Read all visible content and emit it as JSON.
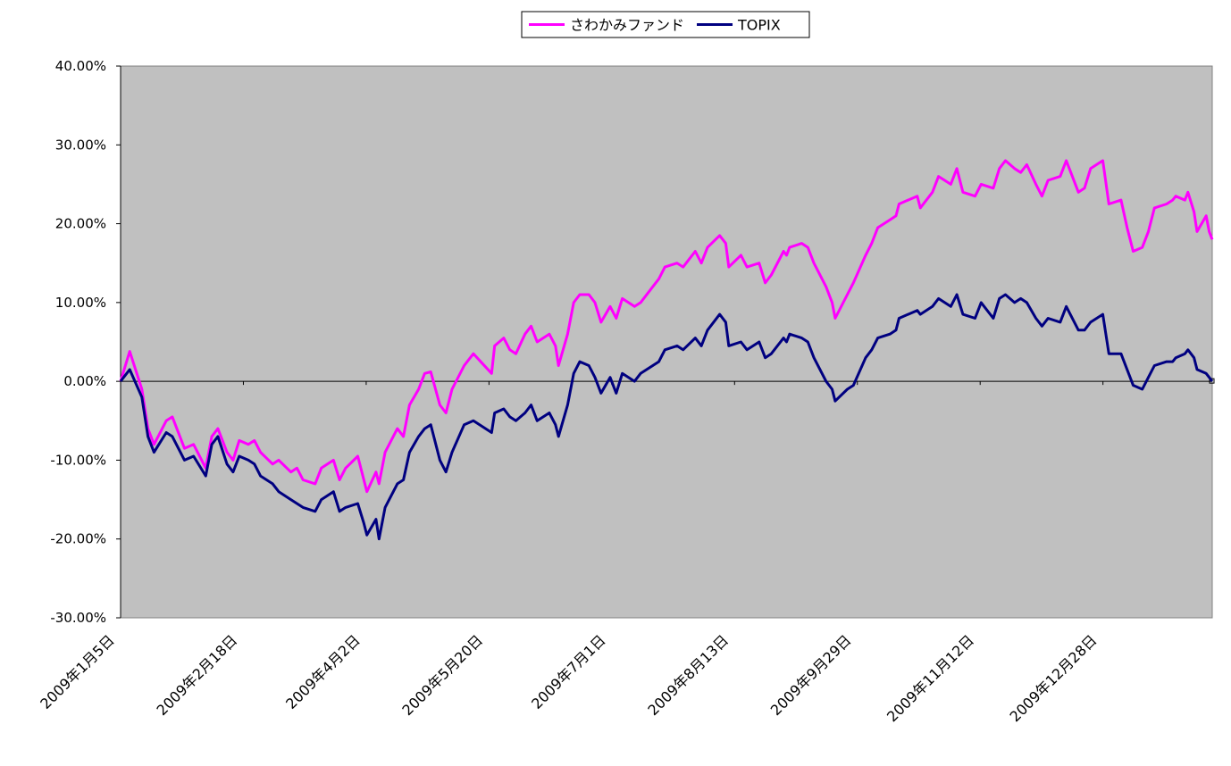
{
  "chart_data": {
    "type": "line",
    "title": "",
    "xlabel": "",
    "ylabel": "",
    "ylim": [
      -30,
      40
    ],
    "y_ticks": [
      40,
      30,
      20,
      10,
      0,
      -10,
      -20,
      -30
    ],
    "y_tick_labels": [
      "40.00%",
      "30.00%",
      "20.00%",
      "10.00%",
      "0.00%",
      "-10.00%",
      "-20.00%",
      "-30.00%"
    ],
    "x_tick_labels": [
      "2009年1月5日",
      "2009年2月18日",
      "2009年4月2日",
      "2009年5月20日",
      "2009年7月1日",
      "2009年8月13日",
      "2009年9月29日",
      "2009年11月12日",
      "2009年12月28日"
    ],
    "x_range": [
      "2009年1月5日",
      "2009年12月30日"
    ],
    "legend_position": "top-center",
    "grid": false,
    "plot_background": "#c0c0c0",
    "series": [
      {
        "name": "さわかみファンド",
        "color": "#ff00ff",
        "points": [
          [
            "2009年1月5日",
            0
          ],
          [
            "2009年1月8日",
            3.8
          ],
          [
            "2009年1月12日",
            -1
          ],
          [
            "2009年1月14日",
            -6
          ],
          [
            "2009年1月16日",
            -8
          ],
          [
            "2009年1月20日",
            -5
          ],
          [
            "2009年1月22日",
            -4.5
          ],
          [
            "2009年1月26日",
            -8.5
          ],
          [
            "2009年1月29日",
            -8
          ],
          [
            "2009年2月2日",
            -11
          ],
          [
            "2009年2月4日",
            -7
          ],
          [
            "2009年2月6日",
            -6
          ],
          [
            "2009年2月9日",
            -9
          ],
          [
            "2009年2月11日",
            -10
          ],
          [
            "2009年2月13日",
            -7.5
          ],
          [
            "2009年2月16日",
            -8
          ],
          [
            "2009年2月18日",
            -7.5
          ],
          [
            "2009年2月20日",
            -9
          ],
          [
            "2009年2月24日",
            -10.5
          ],
          [
            "2009年2月26日",
            -10
          ],
          [
            "2009年3月2日",
            -11.5
          ],
          [
            "2009年3月4日",
            -11
          ],
          [
            "2009年3月6日",
            -12.5
          ],
          [
            "2009年3月10日",
            -13
          ],
          [
            "2009年3月12日",
            -11
          ],
          [
            "2009年3月16日",
            -10
          ],
          [
            "2009年3月18日",
            -12.5
          ],
          [
            "2009年3月20日",
            -11
          ],
          [
            "2009年3月24日",
            -9.5
          ],
          [
            "2009年3月26日",
            -12.5
          ],
          [
            "2009年3月27日",
            -14
          ],
          [
            "2009年3月30日",
            -11.5
          ],
          [
            "2009年3月31日",
            -13
          ],
          [
            "2009年4月2日",
            -9
          ],
          [
            "2009年4月6日",
            -6
          ],
          [
            "2009年4月8日",
            -7
          ],
          [
            "2009年4月10日",
            -3
          ],
          [
            "2009年4月13日",
            -1
          ],
          [
            "2009年4月15日",
            1
          ],
          [
            "2009年4月17日",
            1.2
          ],
          [
            "2009年4月20日",
            -3
          ],
          [
            "2009年4月22日",
            -4
          ],
          [
            "2009年4月24日",
            -1
          ],
          [
            "2009年4月28日",
            2
          ],
          [
            "2009年5月1日",
            3.5
          ],
          [
            "2009年5月7日",
            1
          ],
          [
            "2009年5月8日",
            4.5
          ],
          [
            "2009年5月11日",
            5.5
          ],
          [
            "2009年5月13日",
            4
          ],
          [
            "2009年5月15日",
            3.5
          ],
          [
            "2009年5月18日",
            6
          ],
          [
            "2009年5月20日",
            7
          ],
          [
            "2009年5月22日",
            5
          ],
          [
            "2009年5月26日",
            6
          ],
          [
            "2009年5月28日",
            4.5
          ],
          [
            "2009年5月29日",
            2
          ],
          [
            "2009年6月1日",
            6
          ],
          [
            "2009年6月3日",
            10
          ],
          [
            "2009年6月5日",
            11
          ],
          [
            "2009年6月8日",
            11
          ],
          [
            "2009年6月10日",
            10
          ],
          [
            "2009年6月12日",
            7.5
          ],
          [
            "2009年6月15日",
            9.5
          ],
          [
            "2009年6月17日",
            8
          ],
          [
            "2009年6月19日",
            10.5
          ],
          [
            "2009年6月23日",
            9.5
          ],
          [
            "2009年6月25日",
            10
          ],
          [
            "2009年6月29日",
            12
          ],
          [
            "2009年7月1日",
            13
          ],
          [
            "2009年7月3日",
            14.5
          ],
          [
            "2009年7月7日",
            15
          ],
          [
            "2009年7月9日",
            14.5
          ],
          [
            "2009年7月13日",
            16.5
          ],
          [
            "2009年7月15日",
            15
          ],
          [
            "2009年7月17日",
            17
          ],
          [
            "2009年7月21日",
            18.5
          ],
          [
            "2009年7月23日",
            17.5
          ],
          [
            "2009年7月24日",
            14.5
          ],
          [
            "2009年7月28日",
            16
          ],
          [
            "2009年7月30日",
            14.5
          ],
          [
            "2009年8月3日",
            15
          ],
          [
            "2009年8月5日",
            12.5
          ],
          [
            "2009年8月7日",
            13.5
          ],
          [
            "2009年8月11日",
            16.5
          ],
          [
            "2009年8月12日",
            16
          ],
          [
            "2009年8月13日",
            17
          ],
          [
            "2009年8月17日",
            17.5
          ],
          [
            "2009年8月19日",
            17
          ],
          [
            "2009年8月21日",
            15
          ],
          [
            "2009年8月25日",
            12
          ],
          [
            "2009年8月27日",
            10
          ],
          [
            "2009年8月28日",
            8
          ],
          [
            "2009年9月1日",
            11
          ],
          [
            "2009年9月3日",
            12.5
          ],
          [
            "2009年9月7日",
            16
          ],
          [
            "2009年9月9日",
            17.5
          ],
          [
            "2009年9月11日",
            19.5
          ],
          [
            "2009年9月15日",
            20.5
          ],
          [
            "2009年9月17日",
            21
          ],
          [
            "2009年9月18日",
            22.5
          ],
          [
            "2009年9月24日",
            23.5
          ],
          [
            "2009年9月25日",
            22
          ],
          [
            "2009年9月29日",
            24
          ],
          [
            "2009年10月1日",
            26
          ],
          [
            "2009年10月5日",
            25
          ],
          [
            "2009年10月7日",
            27
          ],
          [
            "2009年10月9日",
            24
          ],
          [
            "2009年10月13日",
            23.5
          ],
          [
            "2009年10月15日",
            25
          ],
          [
            "2009年10月19日",
            24.5
          ],
          [
            "2009年10月21日",
            27
          ],
          [
            "2009年10月23日",
            28
          ],
          [
            "2009年10月26日",
            27
          ],
          [
            "2009年10月28日",
            26.5
          ],
          [
            "2009年10月30日",
            27.5
          ],
          [
            "2009年11月2日",
            25
          ],
          [
            "2009年11月4日",
            23.5
          ],
          [
            "2009年11月6日",
            25.5
          ],
          [
            "2009年11月10日",
            26
          ],
          [
            "2009年11月12日",
            28
          ],
          [
            "2009年11月16日",
            24
          ],
          [
            "2009年11月18日",
            24.5
          ],
          [
            "2009年11月20日",
            27
          ],
          [
            "2009年11月24日",
            28
          ],
          [
            "2009年11月26日",
            22.5
          ],
          [
            "2009年11月30日",
            23
          ],
          [
            "2009年12月2日",
            19.5
          ],
          [
            "2009年12月4日",
            16.5
          ],
          [
            "2009年12月7日",
            17
          ],
          [
            "2009年12月9日",
            19
          ],
          [
            "2009年12月11日",
            22
          ],
          [
            "2009年12月15日",
            22.5
          ],
          [
            "2009年12月17日",
            23
          ],
          [
            "2009年12月18日",
            23.5
          ],
          [
            "2009年12月21日",
            23
          ],
          [
            "2009年12月22日",
            24
          ],
          [
            "2009年12月24日",
            21.5
          ],
          [
            "2009年12月25日",
            19
          ],
          [
            "2009年12月28日",
            21
          ],
          [
            "2009年12月29日",
            19
          ],
          [
            "2009年12月30日",
            18
          ]
        ]
      },
      {
        "name": "TOPIX",
        "color": "#000080",
        "points": [
          [
            "2009年1月5日",
            0
          ],
          [
            "2009年1月8日",
            1.5
          ],
          [
            "2009年1月12日",
            -2
          ],
          [
            "2009年1月14日",
            -7
          ],
          [
            "2009年1月16日",
            -9
          ],
          [
            "2009年1月20日",
            -6.5
          ],
          [
            "2009年1月22日",
            -7
          ],
          [
            "2009年1月26日",
            -10
          ],
          [
            "2009年1月29日",
            -9.5
          ],
          [
            "2009年2月2日",
            -12
          ],
          [
            "2009年2月4日",
            -8
          ],
          [
            "2009年2月6日",
            -7
          ],
          [
            "2009年2月9日",
            -10.5
          ],
          [
            "2009年2月11日",
            -11.5
          ],
          [
            "2009年2月13日",
            -9.5
          ],
          [
            "2009年2月16日",
            -10
          ],
          [
            "2009年2月18日",
            -10.5
          ],
          [
            "2009年2月20日",
            -12
          ],
          [
            "2009年2月24日",
            -13
          ],
          [
            "2009年2月26日",
            -14
          ],
          [
            "2009年3月2日",
            -15
          ],
          [
            "2009年3月4日",
            -15.5
          ],
          [
            "2009年3月6日",
            -16
          ],
          [
            "2009年3月10日",
            -16.5
          ],
          [
            "2009年3月12日",
            -15
          ],
          [
            "2009年3月16日",
            -14
          ],
          [
            "2009年3月18日",
            -16.5
          ],
          [
            "2009年3月20日",
            -16
          ],
          [
            "2009年3月24日",
            -15.5
          ],
          [
            "2009年3月26日",
            -18
          ],
          [
            "2009年3月27日",
            -19.5
          ],
          [
            "2009年3月30日",
            -17.5
          ],
          [
            "2009年3月31日",
            -20
          ],
          [
            "2009年4月2日",
            -16
          ],
          [
            "2009年4月6日",
            -13
          ],
          [
            "2009年4月8日",
            -12.5
          ],
          [
            "2009年4月10日",
            -9
          ],
          [
            "2009年4月13日",
            -7
          ],
          [
            "2009年4月15日",
            -6
          ],
          [
            "2009年4月17日",
            -5.5
          ],
          [
            "2009年4月20日",
            -10
          ],
          [
            "2009年4月22日",
            -11.5
          ],
          [
            "2009年4月24日",
            -9
          ],
          [
            "2009年4月28日",
            -5.5
          ],
          [
            "2009年5月1日",
            -5
          ],
          [
            "2009年5月7日",
            -6.5
          ],
          [
            "2009年5月8日",
            -4
          ],
          [
            "2009年5月11日",
            -3.5
          ],
          [
            "2009年5月13日",
            -4.5
          ],
          [
            "2009年5月15日",
            -5
          ],
          [
            "2009年5月18日",
            -4
          ],
          [
            "2009年5月20日",
            -3
          ],
          [
            "2009年5月22日",
            -5
          ],
          [
            "2009年5月26日",
            -4
          ],
          [
            "2009年5月28日",
            -5.5
          ],
          [
            "2009年5月29日",
            -7
          ],
          [
            "2009年6月1日",
            -3
          ],
          [
            "2009年6月3日",
            1
          ],
          [
            "2009年6月5日",
            2.5
          ],
          [
            "2009年6月8日",
            2
          ],
          [
            "2009年6月10日",
            0.5
          ],
          [
            "2009年6月12日",
            -1.5
          ],
          [
            "2009年6月15日",
            0.5
          ],
          [
            "2009年6月17日",
            -1.5
          ],
          [
            "2009年6月19日",
            1
          ],
          [
            "2009年6月23日",
            0
          ],
          [
            "2009年6月25日",
            1
          ],
          [
            "2009年6月29日",
            2
          ],
          [
            "2009年7月1日",
            2.5
          ],
          [
            "2009年7月3日",
            4
          ],
          [
            "2009年7月7日",
            4.5
          ],
          [
            "2009年7月9日",
            4
          ],
          [
            "2009年7月13日",
            5.5
          ],
          [
            "2009年7月15日",
            4.5
          ],
          [
            "2009年7月17日",
            6.5
          ],
          [
            "2009年7月21日",
            8.5
          ],
          [
            "2009年7月23日",
            7.5
          ],
          [
            "2009年7月24日",
            4.5
          ],
          [
            "2009年7月28日",
            5
          ],
          [
            "2009年7月30日",
            4
          ],
          [
            "2009年8月3日",
            5
          ],
          [
            "2009年8月5日",
            3
          ],
          [
            "2009年8月7日",
            3.5
          ],
          [
            "2009年8月11日",
            5.5
          ],
          [
            "2009年8月12日",
            5
          ],
          [
            "2009年8月13日",
            6
          ],
          [
            "2009年8月17日",
            5.5
          ],
          [
            "2009年8月19日",
            5
          ],
          [
            "2009年8月21日",
            3
          ],
          [
            "2009年8月25日",
            0
          ],
          [
            "2009年8月27日",
            -1
          ],
          [
            "2009年8月28日",
            -2.5
          ],
          [
            "2009年9月1日",
            -1
          ],
          [
            "2009年9月3日",
            -0.5
          ],
          [
            "2009年9月7日",
            3
          ],
          [
            "2009年9月9日",
            4
          ],
          [
            "2009年9月11日",
            5.5
          ],
          [
            "2009年9月15日",
            6
          ],
          [
            "2009年9月17日",
            6.5
          ],
          [
            "2009年9月18日",
            8
          ],
          [
            "2009年9月24日",
            9
          ],
          [
            "2009年9月25日",
            8.5
          ],
          [
            "2009年9月29日",
            9.5
          ],
          [
            "2009年10月1日",
            10.5
          ],
          [
            "2009年10月5日",
            9.5
          ],
          [
            "2009年10月7日",
            11
          ],
          [
            "2009年10月9日",
            8.5
          ],
          [
            "2009年10月13日",
            8
          ],
          [
            "2009年10月15日",
            10
          ],
          [
            "2009年10月19日",
            8
          ],
          [
            "2009年10月21日",
            10.5
          ],
          [
            "2009年10月23日",
            11
          ],
          [
            "2009年10月26日",
            10
          ],
          [
            "2009年10月28日",
            10.5
          ],
          [
            "2009年10月30日",
            10
          ],
          [
            "2009年11月2日",
            8
          ],
          [
            "2009年11月4日",
            7
          ],
          [
            "2009年11月6日",
            8
          ],
          [
            "2009年11月10日",
            7.5
          ],
          [
            "2009年11月12日",
            9.5
          ],
          [
            "2009年11月16日",
            6.5
          ],
          [
            "2009年11月18日",
            6.5
          ],
          [
            "2009年11月20日",
            7.5
          ],
          [
            "2009年11月24日",
            8.5
          ],
          [
            "2009年11月26日",
            3.5
          ],
          [
            "2009年11月30日",
            3.5
          ],
          [
            "2009年12月2日",
            1.5
          ],
          [
            "2009年12月4日",
            -0.5
          ],
          [
            "2009年12月7日",
            -1
          ],
          [
            "2009年12月9日",
            0.5
          ],
          [
            "2009年12月11日",
            2
          ],
          [
            "2009年12月15日",
            2.5
          ],
          [
            "2009年12月17日",
            2.5
          ],
          [
            "2009年12月18日",
            3
          ],
          [
            "2009年12月21日",
            3.5
          ],
          [
            "2009年12月22日",
            4
          ],
          [
            "2009年12月24日",
            3
          ],
          [
            "2009年12月25日",
            1.5
          ],
          [
            "2009年12月28日",
            1
          ],
          [
            "2009年12月29日",
            0.5
          ],
          [
            "2009年12月30日",
            0
          ]
        ]
      }
    ]
  }
}
